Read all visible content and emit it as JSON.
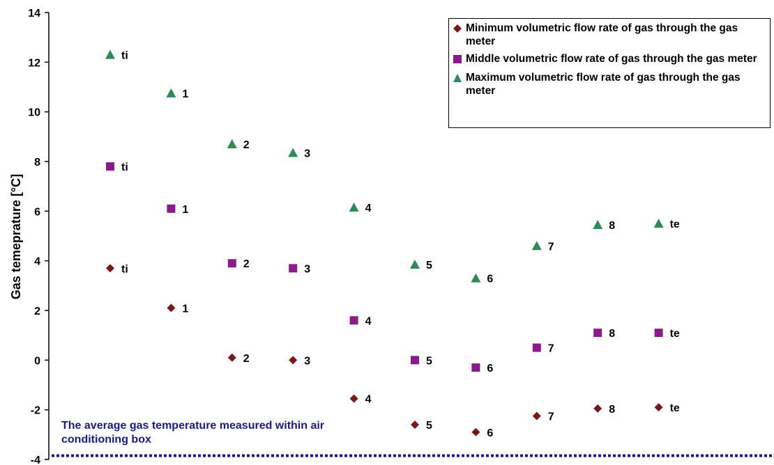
{
  "chart_data": {
    "type": "scatter",
    "title": "",
    "xlabel": "",
    "ylabel": "Gas temeprature [°C]",
    "ylim": [
      -4,
      14
    ],
    "y_ticks": [
      -4,
      -2,
      0,
      2,
      4,
      6,
      8,
      10,
      12,
      14
    ],
    "x_categories": [
      "ti",
      "1",
      "2",
      "3",
      "4",
      "5",
      "6",
      "7",
      "8",
      "te"
    ],
    "legend_position": "top-right",
    "grid": false,
    "series": [
      {
        "name": "Minimum volumetric flow rate of gas through the gas meter",
        "marker": "diamond",
        "color": "#7a1818",
        "values": [
          3.7,
          2.1,
          0.1,
          0.0,
          -1.55,
          -2.6,
          -2.9,
          -2.25,
          -1.95,
          -1.9
        ],
        "point_labels": [
          "ti",
          "1",
          "2",
          "3",
          "4",
          "5",
          "6",
          "7",
          "8",
          "te"
        ]
      },
      {
        "name": "Middle volumetric flow rate of gas through the gas meter",
        "marker": "square",
        "color": "#8b1a8b",
        "values": [
          7.8,
          6.1,
          3.9,
          3.7,
          1.6,
          0.0,
          -0.3,
          0.5,
          1.1,
          1.1
        ],
        "point_labels": [
          "ti",
          "1",
          "2",
          "3",
          "4",
          "5",
          "6",
          "7",
          "8",
          "te"
        ]
      },
      {
        "name": "Maximum volumetric flow rate of gas through the gas meter",
        "marker": "triangle",
        "color": "#2e8b57",
        "values": [
          12.3,
          10.75,
          8.7,
          8.35,
          6.15,
          3.85,
          3.3,
          4.6,
          5.45,
          5.5
        ],
        "point_labels": [
          "ti",
          "1",
          "2",
          "3",
          "4",
          "5",
          "6",
          "7",
          "8",
          "te"
        ]
      }
    ],
    "reference_line": {
      "value": -3.85,
      "color": "#1a1a8c",
      "style": "dotted",
      "label": "The average gas temperature measured within air conditioning box",
      "label_lines": [
        "The average gas temperature measured within air",
        "conditioning box"
      ]
    }
  }
}
